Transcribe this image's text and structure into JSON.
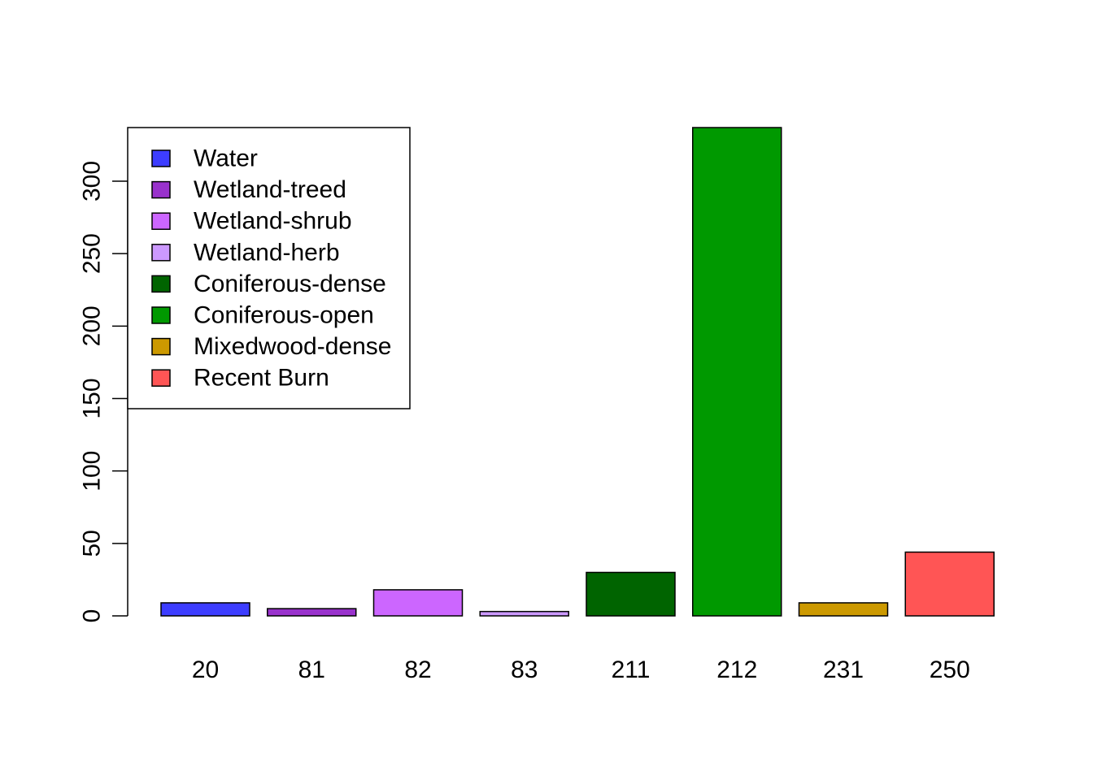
{
  "chart_data": {
    "type": "bar",
    "title": "",
    "xlabel": "",
    "ylabel": "",
    "categories": [
      "20",
      "81",
      "82",
      "83",
      "211",
      "212",
      "231",
      "250"
    ],
    "values": [
      9,
      5,
      18,
      3,
      30,
      337,
      9,
      44
    ],
    "colors": [
      "#3d3dff",
      "#9932cc",
      "#cc66ff",
      "#cc99ff",
      "#006400",
      "#009900",
      "#cc9900",
      "#ff5555"
    ],
    "ylim": [
      0,
      337
    ],
    "yticks": [
      0,
      50,
      100,
      150,
      200,
      250,
      300
    ],
    "legend": {
      "position": "top-left",
      "entries": [
        {
          "label": "Water",
          "color": "#3d3dff"
        },
        {
          "label": "Wetland-treed",
          "color": "#9932cc"
        },
        {
          "label": "Wetland-shrub",
          "color": "#cc66ff"
        },
        {
          "label": "Wetland-herb",
          "color": "#cc99ff"
        },
        {
          "label": "Coniferous-dense",
          "color": "#006400"
        },
        {
          "label": "Coniferous-open",
          "color": "#009900"
        },
        {
          "label": "Mixedwood-dense",
          "color": "#cc9900"
        },
        {
          "label": "Recent Burn",
          "color": "#ff5555"
        }
      ]
    },
    "grid": false
  }
}
